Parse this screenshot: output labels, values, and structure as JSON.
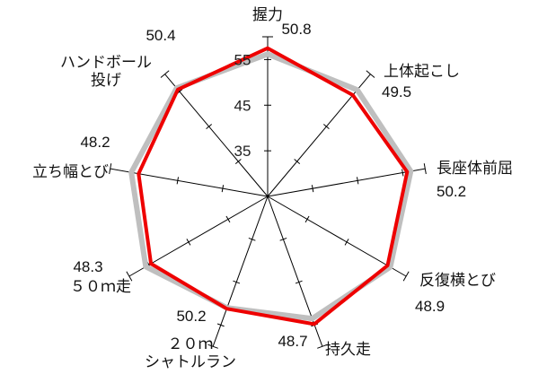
{
  "chart_data": {
    "type": "radar",
    "title": "",
    "scale": {
      "min": 25,
      "max": 60,
      "tick_labels": [
        "35",
        "45",
        "55"
      ],
      "tick_values": [
        35,
        45,
        55
      ]
    },
    "axes": [
      {
        "label": "握力",
        "value_label": "50.8"
      },
      {
        "label": "上体起こし",
        "value_label": "49.5"
      },
      {
        "label": "長座体前屈",
        "value_label": "50.2"
      },
      {
        "label": "反復横とび",
        "value_label": "48.9"
      },
      {
        "label": "持久走",
        "value_label": "48.7"
      },
      {
        "label": "２０ｍ\nシャトルラン",
        "value_label": "50.2"
      },
      {
        "label": "５０ｍ走",
        "value_label": "48.3"
      },
      {
        "label": "立ち幅とび",
        "value_label": "48.2"
      },
      {
        "label": "ハンドボール\n投げ",
        "value_label": "50.4"
      }
    ],
    "series": [
      {
        "color": "#bfbfbf",
        "values": [
          56.2,
          55.5,
          56.8,
          56.0,
          53.5,
          51.0,
          55.8,
          55.3,
          56.0
        ]
      },
      {
        "color": "#ee0000",
        "values": [
          57.5,
          54.0,
          56.0,
          55.3,
          54.8,
          51.2,
          54.5,
          53.7,
          55.6
        ]
      }
    ]
  }
}
